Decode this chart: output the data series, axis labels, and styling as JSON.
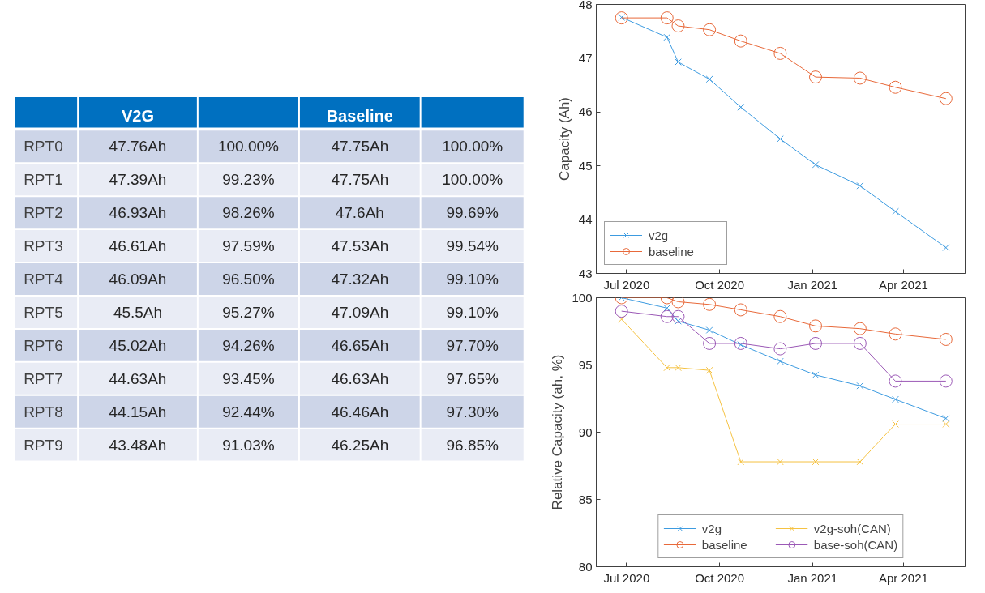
{
  "chart_data": [
    {
      "type": "other",
      "categories": [
        "RPT0",
        "RPT1",
        "RPT2",
        "RPT3",
        "RPT4",
        "RPT5",
        "RPT6",
        "RPT7",
        "RPT8",
        "RPT9"
      ],
      "series": [
        {
          "name": "V2G",
          "colors": [
            "#cdd5e8",
            "#e9ecf5",
            "#cdd5e8",
            "#e9ecf5",
            "#cdd5e8",
            "#e9ecf5",
            "#cdd5e8",
            "#e9ecf5",
            "#cdd5e8",
            "#e9ecf5"
          ],
          "values": [
            47.76,
            47.39,
            46.93,
            46.61,
            46.09,
            45.5,
            45.02,
            44.63,
            44.15,
            43.48
          ],
          "value_labels": [
            "47.76Ah",
            "47.39Ah",
            "46.93Ah",
            "46.61Ah",
            "46.09Ah",
            "45.5Ah",
            "45.02Ah",
            "44.63Ah",
            "44.15Ah",
            "43.48Ah"
          ]
        },
        {
          "name": null,
          "colors": [
            "#cdd5e8",
            "#e9ecf5",
            "#cdd5e8",
            "#e9ecf5",
            "#cdd5e8",
            "#e9ecf5",
            "#cdd5e8",
            "#e9ecf5",
            "#cdd5e8",
            "#e9ecf5"
          ],
          "values": [
            100.0,
            99.23,
            98.26,
            97.59,
            96.5,
            95.27,
            94.26,
            93.45,
            92.44,
            91.03
          ],
          "value_labels": [
            "100.00%",
            "99.23%",
            "98.26%",
            "97.59%",
            "96.50%",
            "95.27%",
            "94.26%",
            "93.45%",
            "92.44%",
            "91.03%"
          ]
        },
        {
          "name": "Baseline",
          "colors": [
            "#cdd5e8",
            "#e9ecf5",
            "#cdd5e8",
            "#e9ecf5",
            "#cdd5e8",
            "#e9ecf5",
            "#cdd5e8",
            "#e9ecf5",
            "#cdd5e8",
            "#e9ecf5"
          ],
          "values": [
            47.75,
            47.75,
            47.6,
            47.53,
            47.32,
            47.09,
            46.65,
            46.63,
            46.46,
            46.25
          ],
          "value_labels": [
            "47.75Ah",
            "47.75Ah",
            "47.6Ah",
            "47.53Ah",
            "47.32Ah",
            "47.09Ah",
            "46.65Ah",
            "46.63Ah",
            "46.46Ah",
            "46.25Ah"
          ]
        },
        {
          "name": null,
          "colors": [
            "#cdd5e8",
            "#e9ecf5",
            "#cdd5e8",
            "#e9ecf5",
            "#cdd5e8",
            "#e9ecf5",
            "#cdd5e8",
            "#e9ecf5",
            "#cdd5e8",
            "#e9ecf5"
          ],
          "values": [
            100.0,
            100.0,
            99.69,
            99.54,
            99.1,
            99.1,
            97.7,
            97.65,
            97.3,
            96.85
          ],
          "value_labels": [
            "100.00%",
            "100.00%",
            "99.69%",
            "99.54%",
            "99.10%",
            "99.10%",
            "97.70%",
            "97.65%",
            "97.30%",
            "96.85%"
          ]
        }
      ]
    },
    {
      "type": "line",
      "ylabel": "Capacity (Ah)",
      "x": [
        "2020-06-26",
        "2020-08-10",
        "2020-08-21",
        "2020-09-21",
        "2020-10-22",
        "2020-11-30",
        "2021-01-04",
        "2021-02-17",
        "2021-03-24",
        "2021-05-13"
      ],
      "xlim": [
        "2020-06-01",
        "2021-06-01"
      ],
      "xticks": [
        {
          "value": "2020-07-01",
          "label": "Jul 2020"
        },
        {
          "value": "2020-10-01",
          "label": "Oct 2020"
        },
        {
          "value": "2021-01-01",
          "label": "Jan 2021"
        },
        {
          "value": "2021-04-01",
          "label": "Apr 2021"
        }
      ],
      "ylim": [
        43,
        48
      ],
      "yticks": [
        43,
        44,
        45,
        46,
        47,
        48
      ],
      "grid": false,
      "legend": "bottom left",
      "series": [
        {
          "name": "v2g",
          "color": "#3d9be0",
          "marker": "cross",
          "values": [
            47.76,
            47.39,
            46.93,
            46.61,
            46.09,
            45.5,
            45.02,
            44.63,
            44.15,
            43.48
          ]
        },
        {
          "name": "baseline",
          "color": "#e8693a",
          "marker": "circle",
          "values": [
            47.75,
            47.75,
            47.6,
            47.53,
            47.32,
            47.09,
            46.65,
            46.63,
            46.46,
            46.25
          ]
        }
      ]
    },
    {
      "type": "line",
      "ylabel": "Relative Capacity (ah, %)",
      "x": [
        "2020-06-26",
        "2020-08-10",
        "2020-08-21",
        "2020-09-21",
        "2020-10-22",
        "2020-11-30",
        "2021-01-04",
        "2021-02-17",
        "2021-03-24",
        "2021-05-13"
      ],
      "xlim": [
        "2020-06-01",
        "2021-06-01"
      ],
      "xticks": [
        {
          "value": "2020-07-01",
          "label": "Jul 2020"
        },
        {
          "value": "2020-10-01",
          "label": "Oct 2020"
        },
        {
          "value": "2021-01-01",
          "label": "Jan 2021"
        },
        {
          "value": "2021-04-01",
          "label": "Apr 2021"
        }
      ],
      "ylim": [
        80,
        100
      ],
      "yticks": [
        80,
        85,
        90,
        95,
        100
      ],
      "grid": false,
      "legend": "bottom",
      "series": [
        {
          "name": "v2g",
          "color": "#3d9be0",
          "marker": "cross",
          "values": [
            100.0,
            99.23,
            98.26,
            97.59,
            96.5,
            95.27,
            94.26,
            93.45,
            92.44,
            91.03
          ]
        },
        {
          "name": "baseline",
          "color": "#e8693a",
          "marker": "circle",
          "values": [
            100.0,
            100.0,
            99.7,
            99.5,
            99.1,
            98.6,
            97.9,
            97.7,
            97.3,
            96.9
          ]
        },
        {
          "name": "v2g-soh(CAN)",
          "color": "#f5c242",
          "marker": "cross",
          "values": [
            98.4,
            94.8,
            94.8,
            94.6,
            87.8,
            87.8,
            87.8,
            87.8,
            90.6,
            90.6
          ]
        },
        {
          "name": "base-soh(CAN)",
          "color": "#9b59b6",
          "marker": "circle",
          "values": [
            99.0,
            98.6,
            98.6,
            96.6,
            96.6,
            96.2,
            96.6,
            96.6,
            93.8,
            93.8
          ]
        }
      ]
    }
  ]
}
